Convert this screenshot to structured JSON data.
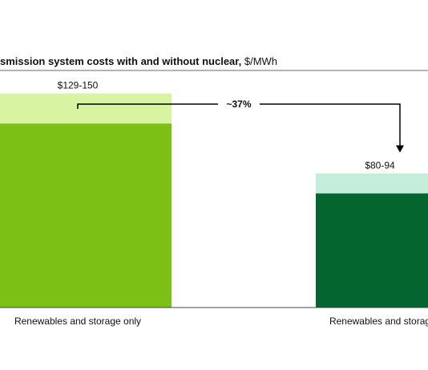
{
  "chart_data": {
    "type": "bar",
    "title": "smission system costs with and without nuclear,",
    "title_unit": " $/MWh",
    "categories": [
      "Renewables and storage only",
      "Renewables and storag"
    ],
    "series": [
      {
        "values": [
          129,
          80
        ]
      },
      {
        "values": [
          21,
          14
        ]
      }
    ],
    "data_labels": [
      "$129-150",
      "$80-94"
    ],
    "ylim": [
      0,
      165
    ],
    "grid": false,
    "annotation": {
      "text": "~37%",
      "from": 0,
      "to": 1
    },
    "colors": {
      "bar_base": [
        "#7dc015",
        "#05652f"
      ],
      "bar_range": [
        "#d7f4a3",
        "#c4eed9"
      ],
      "title_rule": "#9a9a9a",
      "axis": "#444444",
      "arrow": "#000000"
    }
  }
}
